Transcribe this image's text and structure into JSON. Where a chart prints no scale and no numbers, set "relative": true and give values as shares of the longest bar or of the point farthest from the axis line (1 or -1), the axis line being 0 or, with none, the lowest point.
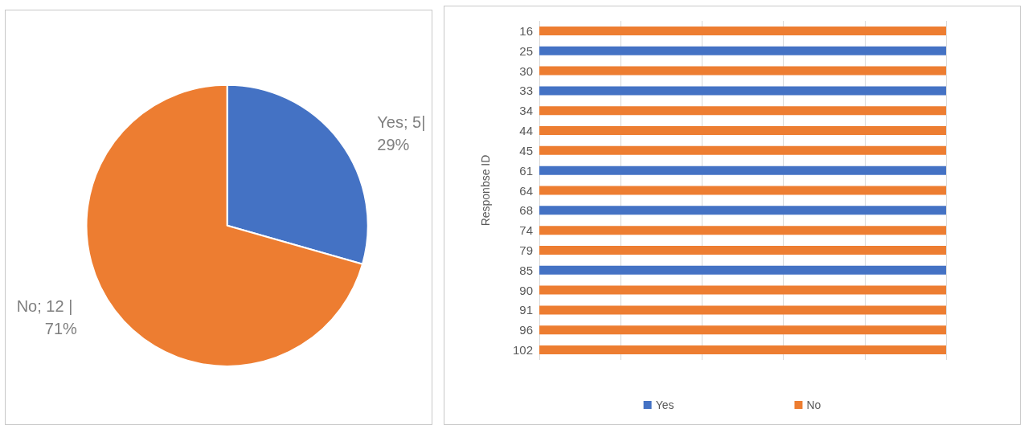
{
  "chart_data": [
    {
      "type": "pie",
      "categories": [
        "Yes",
        "No"
      ],
      "values": [
        5,
        12
      ],
      "colors": [
        "#4472c4",
        "#ed7d31"
      ],
      "value_labels": [
        "5| 29%",
        "12 | 71%"
      ],
      "legend": false
    },
    {
      "type": "bar",
      "orientation": "horizontal",
      "relative": true,
      "stacked": true,
      "ylabel": "Responbse ID",
      "categories": [
        "16",
        "25",
        "30",
        "33",
        "34",
        "44",
        "45",
        "61",
        "64",
        "68",
        "74",
        "79",
        "85",
        "90",
        "91",
        "96",
        "102"
      ],
      "series": [
        {
          "name": "Yes",
          "color": "#4472c4",
          "values": [
            null,
            1,
            null,
            1,
            null,
            null,
            null,
            1,
            null,
            1,
            null,
            null,
            1,
            null,
            null,
            null,
            null
          ]
        },
        {
          "name": "No",
          "color": "#ed7d31",
          "values": [
            1,
            null,
            1,
            null,
            1,
            1,
            1,
            null,
            1,
            null,
            1,
            1,
            null,
            1,
            1,
            1,
            1
          ]
        }
      ],
      "grid": "x",
      "legend": "bottom"
    }
  ]
}
